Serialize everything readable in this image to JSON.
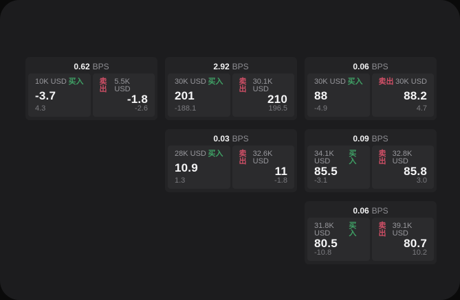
{
  "labels": {
    "bps_unit": "BPS",
    "buy": "买入",
    "sell": "卖出"
  },
  "colors": {
    "outer_background": "#0a0a0a",
    "app_background": "#1c1c1e",
    "card_background": "#232325",
    "panel_background": "#2b2b2d",
    "buy_green": "#3fa065",
    "sell_red": "#cf4f66",
    "primary_text": "#f5f5f6",
    "muted_text": "#98989d",
    "dim_text": "#7c7c80"
  },
  "cards": [
    {
      "bps": "0.62",
      "buy": {
        "amount": "10K USD",
        "value": "-3.7",
        "sub": "4.3"
      },
      "sell": {
        "amount": "5.5K USD",
        "value": "-1.8",
        "sub": "-2.6"
      }
    },
    {
      "bps": "2.92",
      "buy": {
        "amount": "30K USD",
        "value": "201",
        "sub": "-188.1"
      },
      "sell": {
        "amount": "30.1K USD",
        "value": "210",
        "sub": "196.5"
      }
    },
    {
      "bps": "0.06",
      "buy": {
        "amount": "30K USD",
        "value": "88",
        "sub": "-4.9"
      },
      "sell": {
        "amount": "30K USD",
        "value": "88.2",
        "sub": "4.7"
      }
    },
    {
      "bps": "0.03",
      "buy": {
        "amount": "28K USD",
        "value": "10.9",
        "sub": "1.3"
      },
      "sell": {
        "amount": "32.6K USD",
        "value": "11",
        "sub": "-1.8"
      }
    },
    {
      "bps": "0.09",
      "buy": {
        "amount": "34.1K USD",
        "value": "85.5",
        "sub": "-3.1"
      },
      "sell": {
        "amount": "32.8K USD",
        "value": "85.8",
        "sub": "3.0"
      }
    },
    {
      "bps": "0.06",
      "buy": {
        "amount": "31.8K USD",
        "value": "80.5",
        "sub": "-10.8"
      },
      "sell": {
        "amount": "39.1K USD",
        "value": "80.7",
        "sub": "10.2"
      }
    }
  ]
}
